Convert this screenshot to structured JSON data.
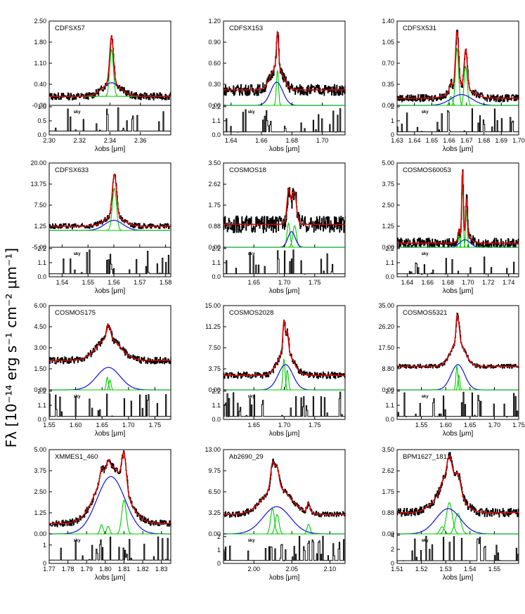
{
  "figure": {
    "ylabel": "Fλ [10⁻¹⁴ erg s⁻¹ cm⁻² μm⁻¹]",
    "xlabel": "λobs [μm]",
    "sky_label": "sky",
    "colors": {
      "data": "#000000",
      "total_fit": "#e00000",
      "broad": "#1010e0",
      "narrow": "#00cc00",
      "sky": "#000000"
    }
  },
  "chart_data": [
    {
      "type": "line",
      "title": "CDFSX57",
      "xlim": [
        2.3,
        2.38
      ],
      "xticks": [
        2.3,
        2.32,
        2.34,
        2.36
      ],
      "yticks": [
        -0.3,
        0.4,
        1.1,
        1.8,
        2.5
      ],
      "ylim": [
        -0.3,
        2.5
      ],
      "sky_yticks": [
        0.0,
        0.5,
        1.0
      ],
      "sky_ylim": [
        0,
        1.05
      ],
      "center": 2.341,
      "continuum": 0.0,
      "broad": {
        "amp": 0.45,
        "sigma": 0.006
      },
      "narrow": [
        {
          "x": 2.341,
          "amp": 1.55,
          "sigma": 0.0012
        }
      ],
      "noise": 0.12
    },
    {
      "type": "line",
      "title": "CDFSX153",
      "xlim": [
        1.635,
        1.715
      ],
      "xticks": [
        1.64,
        1.66,
        1.68,
        1.7
      ],
      "yticks": [
        0.0,
        0.3,
        0.6,
        0.9,
        1.2
      ],
      "ylim": [
        0,
        1.2
      ],
      "sky_yticks": [
        0.0,
        1.1,
        2.2
      ],
      "sky_ylim": [
        0,
        2.3
      ],
      "center": 1.67,
      "continuum": 0.22,
      "broad": {
        "amp": 0.33,
        "sigma": 0.004
      },
      "narrow": [
        {
          "x": 1.6705,
          "amp": 0.5,
          "sigma": 0.0007
        }
      ],
      "noise": 0.08
    },
    {
      "type": "line",
      "title": "CDFSX531",
      "xlim": [
        1.63,
        1.7
      ],
      "xticks": [
        1.63,
        1.64,
        1.65,
        1.66,
        1.67,
        1.68,
        1.69,
        1.7
      ],
      "yticks": [
        0.0,
        0.35,
        0.7,
        1.05,
        1.4
      ],
      "ylim": [
        0,
        1.4
      ],
      "sky_yticks": [
        0.0,
        1.0,
        2.0
      ],
      "sky_ylim": [
        0,
        2.1
      ],
      "center": 1.667,
      "continuum": 0.12,
      "broad": {
        "amp": 0.18,
        "sigma": 0.006
      },
      "narrow": [
        {
          "x": 1.6645,
          "amp": 0.95,
          "sigma": 0.0009
        },
        {
          "x": 1.6695,
          "amp": 0.65,
          "sigma": 0.0009
        },
        {
          "x": 1.661,
          "amp": 0.15,
          "sigma": 0.0008
        }
      ],
      "noise": 0.06
    },
    {
      "type": "line",
      "title": "CDFSX633",
      "xlim": [
        1.535,
        1.582
      ],
      "xticks": [
        1.54,
        1.55,
        1.56,
        1.57,
        1.58
      ],
      "yticks": [
        -5.0,
        1.25,
        7.5,
        13.75,
        20.0
      ],
      "ylim": [
        -5,
        20
      ],
      "sky_yticks": [
        0.0,
        1.1,
        2.2
      ],
      "sky_ylim": [
        0,
        2.3
      ],
      "center": 1.56,
      "continuum": 1.25,
      "broad": {
        "amp": 3.0,
        "sigma": 0.0035
      },
      "narrow": [
        {
          "x": 1.5602,
          "amp": 12.5,
          "sigma": 0.0008
        }
      ],
      "noise": 0.8
    },
    {
      "type": "line",
      "title": "COSMOS18",
      "xlim": [
        1.6,
        1.8
      ],
      "xticks": [
        1.65,
        1.7,
        1.75
      ],
      "yticks": [
        0.0,
        0.88,
        1.75,
        2.62,
        3.5
      ],
      "ylim": [
        0,
        3.5
      ],
      "sky_yticks": [
        0.0,
        1.1,
        2.2
      ],
      "sky_ylim": [
        0,
        2.3
      ],
      "center": 1.712,
      "continuum": 0.95,
      "broad": {
        "amp": 0.65,
        "sigma": 0.006
      },
      "narrow": [
        {
          "x": 1.707,
          "amp": 1.0,
          "sigma": 0.0025
        },
        {
          "x": 1.717,
          "amp": 0.9,
          "sigma": 0.003
        }
      ],
      "noise": 0.35
    },
    {
      "type": "line",
      "title": "COSMOS60053",
      "xlim": [
        1.63,
        1.75
      ],
      "xticks": [
        1.64,
        1.66,
        1.68,
        1.7,
        1.72,
        1.74
      ],
      "yticks": [
        0.0,
        1.25,
        2.5,
        3.75,
        5.0
      ],
      "ylim": [
        0,
        5
      ],
      "sky_yticks": [
        0.0,
        1.1,
        2.2
      ],
      "sky_ylim": [
        0,
        2.3
      ],
      "center": 1.697,
      "continuum": 0.25,
      "broad": {
        "amp": 0.45,
        "sigma": 0.005
      },
      "narrow": [
        {
          "x": 1.6945,
          "amp": 3.9,
          "sigma": 0.0008
        },
        {
          "x": 1.6985,
          "amp": 2.3,
          "sigma": 0.0008
        },
        {
          "x": 1.691,
          "amp": 0.6,
          "sigma": 0.0008
        }
      ],
      "noise": 0.3
    },
    {
      "type": "line",
      "title": "COSMOS175",
      "xlim": [
        1.55,
        1.78
      ],
      "xticks": [
        1.55,
        1.6,
        1.65,
        1.7,
        1.75
      ],
      "yticks": [
        0.0,
        1.5,
        3.0,
        4.5,
        6.0
      ],
      "ylim": [
        0,
        6
      ],
      "sky_yticks": [
        0.0,
        1.1,
        2.2
      ],
      "sky_ylim": [
        0,
        2.3
      ],
      "center": 1.662,
      "continuum": 2.1,
      "broad": {
        "amp": 1.6,
        "sigma": 0.022
      },
      "narrow": [
        {
          "x": 1.66,
          "amp": 0.9,
          "sigma": 0.002
        },
        {
          "x": 1.665,
          "amp": 0.7,
          "sigma": 0.002
        }
      ],
      "noise": 0.25
    },
    {
      "type": "line",
      "title": "COSMOS2028",
      "xlim": [
        1.6,
        1.8
      ],
      "xticks": [
        1.65,
        1.7,
        1.75
      ],
      "yticks": [
        0.0,
        3.75,
        7.5,
        11.25,
        15.0
      ],
      "ylim": [
        0,
        15
      ],
      "sky_yticks": [
        0.0,
        1.1,
        2.2
      ],
      "sky_ylim": [
        0,
        2.3
      ],
      "center": 1.702,
      "continuum": 2.6,
      "broad": {
        "amp": 4.5,
        "sigma": 0.012
      },
      "narrow": [
        {
          "x": 1.6995,
          "amp": 5.5,
          "sigma": 0.0018
        },
        {
          "x": 1.705,
          "amp": 3.5,
          "sigma": 0.0018
        }
      ],
      "noise": 0.6
    },
    {
      "type": "line",
      "title": "COSMOS5321",
      "xlim": [
        1.5,
        1.75
      ],
      "xticks": [
        1.55,
        1.6,
        1.65,
        1.7,
        1.75
      ],
      "yticks": [
        0.0,
        8.8,
        17.5,
        26.2,
        35.0
      ],
      "ylim": [
        0,
        35
      ],
      "sky_yticks": [
        0.0,
        1.1,
        2.2
      ],
      "sky_ylim": [
        0,
        2.3
      ],
      "center": 1.625,
      "continuum": 9.8,
      "broad": {
        "amp": 10.5,
        "sigma": 0.014
      },
      "narrow": [
        {
          "x": 1.623,
          "amp": 10.0,
          "sigma": 0.002
        },
        {
          "x": 1.627,
          "amp": 6.0,
          "sigma": 0.002
        }
      ],
      "noise": 0.9
    },
    {
      "type": "line",
      "title": "XMMES1_460",
      "xlim": [
        1.77,
        1.835
      ],
      "xticks": [
        1.77,
        1.78,
        1.79,
        1.8,
        1.81,
        1.82,
        1.83
      ],
      "yticks": [
        0.0,
        1.25,
        2.5,
        3.75,
        5.0
      ],
      "ylim": [
        0,
        5
      ],
      "sky_yticks": [
        0,
        1
      ],
      "sky_ylim": [
        0,
        1.6
      ],
      "center": 1.803,
      "continuum": 0.62,
      "broad": {
        "amp": 3.4,
        "sigma": 0.0075
      },
      "narrow": [
        {
          "x": 1.798,
          "amp": 0.55,
          "sigma": 0.0008
        },
        {
          "x": 1.8015,
          "amp": 0.45,
          "sigma": 0.0008
        },
        {
          "x": 1.81,
          "amp": 2.0,
          "sigma": 0.0012
        }
      ],
      "noise": 0.2
    },
    {
      "type": "line",
      "title": "Ab2690_29",
      "xlim": [
        1.96,
        2.12
      ],
      "xticks": [
        2.0,
        2.05,
        2.1
      ],
      "yticks": [
        0.0,
        3.25,
        6.5,
        9.75,
        13.0
      ],
      "ylim": [
        0,
        13
      ],
      "sky_yticks": [
        0,
        1,
        2
      ],
      "sky_ylim": [
        0,
        2.2
      ],
      "center": 2.03,
      "continuum": 3.0,
      "broad": {
        "amp": 4.2,
        "sigma": 0.018
      },
      "narrow": [
        {
          "x": 2.0245,
          "amp": 3.9,
          "sigma": 0.0025
        },
        {
          "x": 2.0305,
          "amp": 3.0,
          "sigma": 0.0025
        },
        {
          "x": 2.072,
          "amp": 1.5,
          "sigma": 0.002
        }
      ],
      "noise": 0.45
    },
    {
      "type": "line",
      "title": "BPM1627_181",
      "xlim": [
        1.51,
        1.56
      ],
      "xticks": [
        1.51,
        1.52,
        1.53,
        1.54,
        1.55
      ],
      "yticks": [
        0.0,
        0.88,
        1.75,
        2.62,
        3.5
      ],
      "ylim": [
        0,
        3.5
      ],
      "sky_yticks": [
        0,
        2,
        4
      ],
      "sky_ylim": [
        0,
        4.2
      ],
      "center": 1.531,
      "continuum": 0.88,
      "broad": {
        "amp": 1.05,
        "sigma": 0.005
      },
      "narrow": [
        {
          "x": 1.5315,
          "amp": 1.3,
          "sigma": 0.0012
        },
        {
          "x": 1.535,
          "amp": 0.85,
          "sigma": 0.0012
        },
        {
          "x": 1.5285,
          "amp": 0.3,
          "sigma": 0.0009
        }
      ],
      "noise": 0.18
    }
  ]
}
